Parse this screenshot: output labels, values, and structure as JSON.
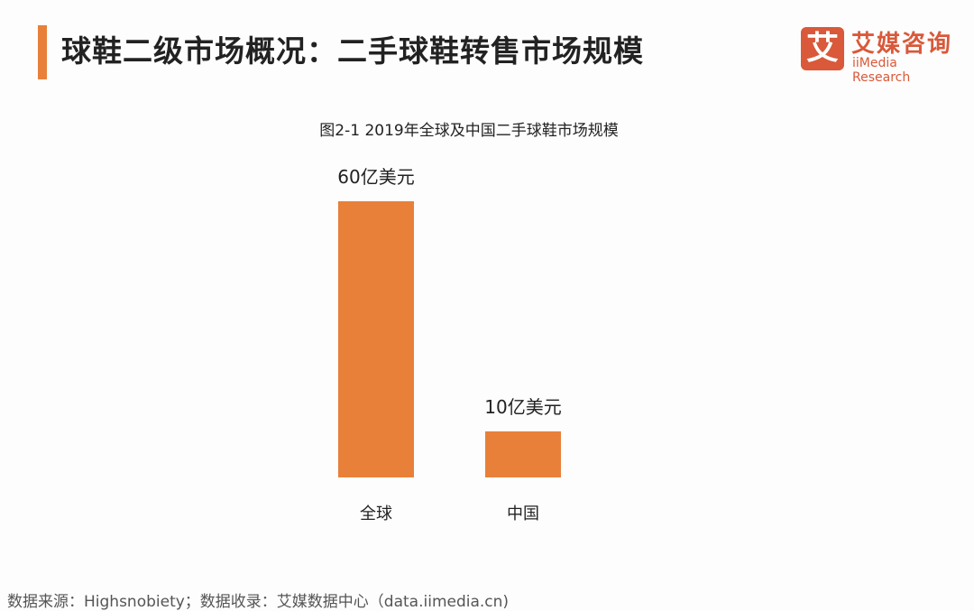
{
  "header": {
    "title": "球鞋二级市场概况：二手球鞋转售市场规模"
  },
  "logo": {
    "mark": "艾",
    "name_cn": "艾媒咨询",
    "name_en": "iiMedia Research",
    "color": "#d9593a"
  },
  "chart_data": {
    "type": "bar",
    "title": "图2-1 2019年全球及中国二手球鞋市场规模",
    "categories": [
      "全球",
      "中国"
    ],
    "values": [
      60,
      10
    ],
    "data_labels": [
      "60亿美元",
      "10亿美元"
    ],
    "unit": "亿美元",
    "ylim": [
      0,
      60
    ],
    "grid": false,
    "bar_color": "#e8803a"
  },
  "footer": {
    "source": "数据来源：Highsnobiety；数据收录：艾媒数据中心（data.iimedia.cn)"
  }
}
